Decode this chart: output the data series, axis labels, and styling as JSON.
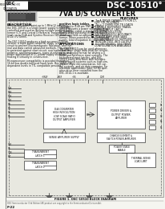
{
  "page_bg": "#f5f5f0",
  "header_bg": "#1a1a1a",
  "title_main": "DSC-10510°",
  "title_sub": "7VA D/S CONVERTER",
  "features_header": "FEATURES",
  "features": [
    "■  7mA DRIVE CAPABILITY FOR CT,",
    "    LOX, OR TR LOADS",
    "■  Zo = 2 OHMS FOR TR LOADS",
    "■  DOUBLE BUFFERED TRANS-",
    "    PARENT INPUT LATCH",
    "■  16-BIT RESOLUTION",
    "■  UP TO 1 MHZ/12 ACCURACY",
    "■  POWER AMPLIFIER SAFE",
    "    PULSATING OR DC SUPPLIES",
    "■  BUILT-IN TEST (BIT) OUTPUT",
    "■  62 GROUNDED, 3V4 DRIVE",
    "    CONFIGURATION AVAILABLE"
  ],
  "desc_header": "DESCRIPTION",
  "left_col_lines": [
    "With its bit-parallel point-up to 1 MHz/12 accuracy,",
    "the DSC-10510 is a single power supply to normally",
    "controlled and used on driving multiple position trans-",
    "former (CT) and Control Differential Transmitter (CDX)",
    "loads up to 7mA and Synchro Receiver (SR) loads up",
    "to Zo = 2 Ohms.",
    " ",
    "The DSC-10510 produces a high accuracy D/S con-",
    "version, a triple power amplifier stage, a track-around",
    "circuit to prevent Electromagnetic Radiation, and ther-",
    "mal and data control advanced methods. This requires",
    "to protected against short circuit, overloads, load im-",
    "pedance, and temperatures, types of references and",
    "power applications of DC power supply shutdown,",
    "making it virtually in constructive.",
    " ",
    "Microprocessor compatibility is provided through a",
    "16-bit bus double-buffered input latch. Bus input is in-",
    "dependent levels in TTL compatible provides"
  ],
  "right_col_header": "positive logic tables.",
  "right_col_lines": [
    "Packaged in 4-48 pin TWP, the DSC-",
    "10510 features a power stage that may",
    "be driven by either a standard 4-OHMS",
    "supply or by pulsating reference supply",
    "when used with an optional power trans-",
    "former. When powered by the referenced",
    "supply, total dissipation is reduced by 60%.",
    " ",
    "APPLICATIONS",
    " ",
    "The DSC-10510 can be used whenever",
    "direct drive single data must be convert-",
    "ed to an analog format for driving a 0",
    "Delta and Reference input systems. The",
    "bit buffered input latches, and DSC-",
    "10510 easily interfaces with micropro-",
    "cessor based systems such as high sim-",
    "ulators, flight instrumentation, fire con-",
    "trol systems, and air data computer. For",
    "alternate applications input (6) Bit oper-",
    "ation drive error controlled from the",
    "DSC-1014-1 is available."
  ],
  "diagram_label": "FIGURE 1. DSC-10510 BLOCK DIAGRAM",
  "footer_text": "DDC Semiconductor (3rd Edition) All product are copyright to the Semiconductor Division Act.",
  "page_num": "F-22",
  "diagram_bg": "#e8e8e0",
  "box_bg": "#ffffff"
}
